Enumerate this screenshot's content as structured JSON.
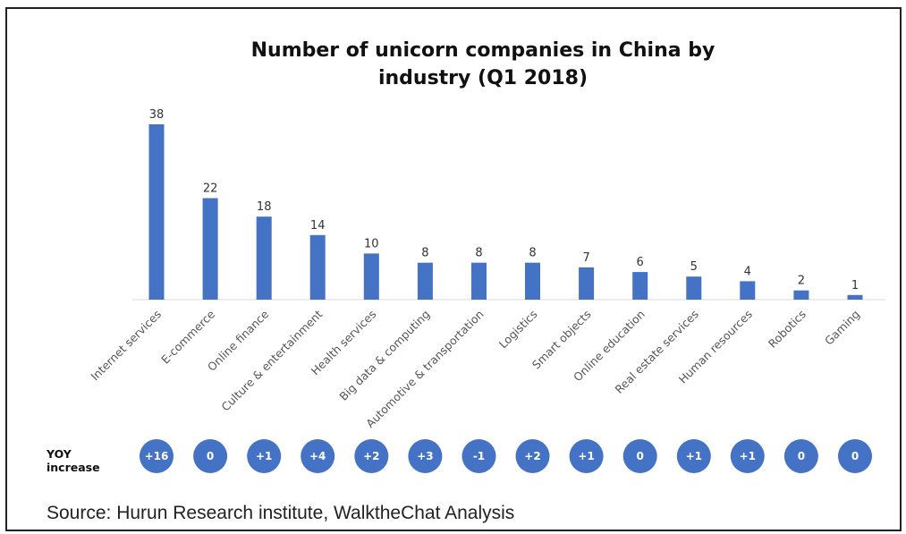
{
  "chart_data": {
    "type": "bar",
    "title_line1": "Number of unicorn companies in China by",
    "title_line2": "industry (Q1 2018)",
    "categories": [
      "Internet services",
      "E-commerce",
      "Online finance",
      "Culture & entertainment",
      "Health services",
      "Big data & computing",
      "Automotive & transportation",
      "Logistics",
      "Smart objects",
      "Online education",
      "Real estate services",
      "Human resources",
      "Robotics",
      "Gaming"
    ],
    "values": [
      38,
      22,
      18,
      14,
      10,
      8,
      8,
      8,
      7,
      6,
      5,
      4,
      2,
      1
    ],
    "yoy_increase": [
      "+16",
      "0",
      "+1",
      "+4",
      "+2",
      "+3",
      "-1",
      "+2",
      "+1",
      "0",
      "+1",
      "+1",
      "0",
      "0"
    ],
    "ylim": [
      0,
      38
    ],
    "grid": false,
    "bar_color": "#4472C4"
  },
  "yoy_label_line1": "YOY",
  "yoy_label_line2": "increase",
  "source": "Source: Hurun Research institute, WalktheChat Analysis"
}
